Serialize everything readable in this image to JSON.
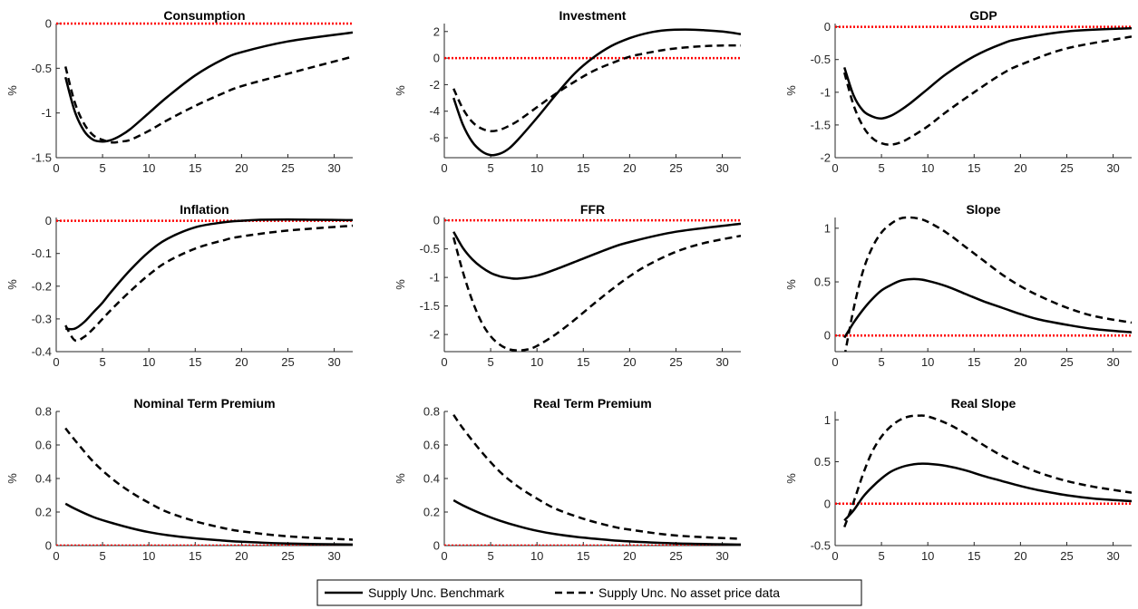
{
  "legend": {
    "entries": [
      {
        "label": "Supply Unc. Benchmark",
        "style": "solid"
      },
      {
        "label": "Supply Unc. No asset price data",
        "style": "dashed"
      }
    ]
  },
  "colors": {
    "line": "#000000",
    "zero_line": "#ff0000",
    "axis": "#262626"
  },
  "chart_data": [
    {
      "type": "line",
      "title": "Consumption",
      "xlabel": "",
      "ylabel": "%",
      "xlim": [
        0,
        32
      ],
      "ylim": [
        -1.5,
        0
      ],
      "xticks": [
        0,
        5,
        10,
        15,
        20,
        25,
        30
      ],
      "yticks": [
        -1.5,
        -1,
        -0.5,
        0
      ],
      "yticklabels": [
        "-1.5",
        "-1",
        "-0.5",
        "0"
      ],
      "series": [
        {
          "name": "Supply Unc. Benchmark",
          "style": "solid",
          "x": [
            1,
            2,
            3,
            4,
            5,
            6,
            7,
            8,
            10,
            12,
            15,
            18,
            20,
            25,
            32
          ],
          "y": [
            -0.6,
            -0.98,
            -1.2,
            -1.3,
            -1.32,
            -1.3,
            -1.25,
            -1.18,
            -1.0,
            -0.82,
            -0.58,
            -0.4,
            -0.32,
            -0.2,
            -0.1
          ]
        },
        {
          "name": "Supply Unc. No asset price data",
          "style": "dashed",
          "x": [
            1,
            2,
            3,
            4,
            5,
            6,
            7,
            8,
            10,
            12,
            15,
            18,
            20,
            25,
            32
          ],
          "y": [
            -0.48,
            -0.88,
            -1.12,
            -1.25,
            -1.3,
            -1.33,
            -1.32,
            -1.3,
            -1.2,
            -1.08,
            -0.92,
            -0.78,
            -0.7,
            -0.56,
            -0.37
          ]
        }
      ]
    },
    {
      "type": "line",
      "title": "Investment",
      "xlabel": "",
      "ylabel": "%",
      "xlim": [
        0,
        32
      ],
      "ylim": [
        -7.5,
        2.6
      ],
      "xticks": [
        0,
        5,
        10,
        15,
        20,
        25,
        30
      ],
      "yticks": [
        -6,
        -4,
        -2,
        0,
        2
      ],
      "yticklabels": [
        "-6",
        "-4",
        "-2",
        "0",
        "2"
      ],
      "series": [
        {
          "name": "Supply Unc. Benchmark",
          "style": "solid",
          "x": [
            1,
            2,
            3,
            4,
            5,
            6,
            7,
            8,
            10,
            12,
            14,
            16,
            18,
            20,
            22,
            24,
            26,
            28,
            30,
            32
          ],
          "y": [
            -3.0,
            -5.0,
            -6.3,
            -7.0,
            -7.3,
            -7.2,
            -6.8,
            -6.1,
            -4.5,
            -2.8,
            -1.2,
            0.0,
            0.9,
            1.5,
            1.9,
            2.1,
            2.15,
            2.1,
            2.0,
            1.8
          ]
        },
        {
          "name": "Supply Unc. No asset price data",
          "style": "dashed",
          "x": [
            1,
            2,
            3,
            4,
            5,
            6,
            7,
            8,
            10,
            12,
            14,
            16,
            18,
            20,
            22,
            24,
            26,
            28,
            30,
            32
          ],
          "y": [
            -2.3,
            -3.8,
            -4.8,
            -5.3,
            -5.5,
            -5.4,
            -5.1,
            -4.7,
            -3.7,
            -2.7,
            -1.8,
            -1.0,
            -0.4,
            0.1,
            0.4,
            0.65,
            0.8,
            0.9,
            0.95,
            0.95
          ]
        }
      ]
    },
    {
      "type": "line",
      "title": "GDP",
      "xlabel": "",
      "ylabel": "%",
      "xlim": [
        0,
        32
      ],
      "ylim": [
        -2,
        0.05
      ],
      "xticks": [
        0,
        5,
        10,
        15,
        20,
        25,
        30
      ],
      "yticks": [
        -2,
        -1.5,
        -1,
        -0.5,
        0
      ],
      "yticklabels": [
        "-2",
        "-1.5",
        "-1",
        "-0.5",
        "0"
      ],
      "series": [
        {
          "name": "Supply Unc. Benchmark",
          "style": "solid",
          "x": [
            1,
            2,
            3,
            4,
            5,
            6,
            7,
            8,
            10,
            12,
            15,
            18,
            20,
            25,
            32
          ],
          "y": [
            -0.62,
            -1.05,
            -1.28,
            -1.37,
            -1.4,
            -1.36,
            -1.28,
            -1.18,
            -0.95,
            -0.72,
            -0.45,
            -0.26,
            -0.18,
            -0.07,
            -0.02
          ]
        },
        {
          "name": "Supply Unc. No asset price data",
          "style": "dashed",
          "x": [
            1,
            2,
            3,
            4,
            5,
            6,
            7,
            8,
            10,
            12,
            15,
            18,
            20,
            25,
            32
          ],
          "y": [
            -0.7,
            -1.2,
            -1.52,
            -1.7,
            -1.78,
            -1.8,
            -1.77,
            -1.7,
            -1.52,
            -1.3,
            -1.0,
            -0.72,
            -0.58,
            -0.33,
            -0.15
          ]
        }
      ]
    },
    {
      "type": "line",
      "title": "Inflation",
      "xlabel": "",
      "ylabel": "%",
      "xlim": [
        0,
        32
      ],
      "ylim": [
        -0.4,
        0.01
      ],
      "xticks": [
        0,
        5,
        10,
        15,
        20,
        25,
        30
      ],
      "yticks": [
        -0.4,
        -0.3,
        -0.2,
        -0.1,
        0
      ],
      "yticklabels": [
        "-0.4",
        "-0.3",
        "-0.2",
        "-0.1",
        "0"
      ],
      "series": [
        {
          "name": "Supply Unc. Benchmark",
          "style": "solid",
          "x": [
            1,
            2,
            3,
            4,
            5,
            6,
            8,
            10,
            12,
            15,
            18,
            20,
            22,
            25,
            28,
            32
          ],
          "y": [
            -0.33,
            -0.33,
            -0.31,
            -0.28,
            -0.25,
            -0.215,
            -0.15,
            -0.095,
            -0.055,
            -0.02,
            -0.005,
            0.0,
            0.003,
            0.004,
            0.003,
            0.002
          ]
        },
        {
          "name": "Supply Unc. No asset price data",
          "style": "dashed",
          "x": [
            1,
            2,
            3,
            4,
            5,
            6,
            8,
            10,
            12,
            15,
            18,
            20,
            25,
            32
          ],
          "y": [
            -0.32,
            -0.365,
            -0.355,
            -0.33,
            -0.3,
            -0.27,
            -0.215,
            -0.165,
            -0.125,
            -0.085,
            -0.06,
            -0.048,
            -0.03,
            -0.015
          ]
        }
      ]
    },
    {
      "type": "line",
      "title": "FFR",
      "xlabel": "",
      "ylabel": "%",
      "xlim": [
        0,
        32
      ],
      "ylim": [
        -2.3,
        0.05
      ],
      "xticks": [
        0,
        5,
        10,
        15,
        20,
        25,
        30
      ],
      "yticks": [
        -2,
        -1.5,
        -1,
        -0.5,
        0
      ],
      "yticklabels": [
        "-2",
        "-1.5",
        "-1",
        "-0.5",
        "0"
      ],
      "series": [
        {
          "name": "Supply Unc. Benchmark",
          "style": "solid",
          "x": [
            1,
            2,
            3,
            4,
            5,
            6,
            7,
            8,
            10,
            12,
            15,
            18,
            20,
            25,
            32
          ],
          "y": [
            -0.2,
            -0.48,
            -0.68,
            -0.82,
            -0.92,
            -0.98,
            -1.01,
            -1.02,
            -0.97,
            -0.86,
            -0.67,
            -0.48,
            -0.38,
            -0.2,
            -0.06
          ]
        },
        {
          "name": "Supply Unc. No asset price data",
          "style": "dashed",
          "x": [
            1,
            2,
            3,
            4,
            5,
            6,
            7,
            8,
            9,
            10,
            12,
            14,
            16,
            18,
            20,
            22,
            25,
            28,
            32
          ],
          "y": [
            -0.3,
            -0.9,
            -1.4,
            -1.78,
            -2.03,
            -2.18,
            -2.26,
            -2.28,
            -2.26,
            -2.2,
            -2.0,
            -1.75,
            -1.48,
            -1.22,
            -0.98,
            -0.78,
            -0.55,
            -0.4,
            -0.27
          ]
        }
      ]
    },
    {
      "type": "line",
      "title": "Slope",
      "xlabel": "",
      "ylabel": "%",
      "xlim": [
        0,
        32
      ],
      "ylim": [
        -0.15,
        1.1
      ],
      "xticks": [
        0,
        5,
        10,
        15,
        20,
        25,
        30
      ],
      "yticks": [
        0,
        0.5,
        1
      ],
      "yticklabels": [
        "0",
        "0.5",
        "1"
      ],
      "series": [
        {
          "name": "Supply Unc. Benchmark",
          "style": "solid",
          "x": [
            1,
            2,
            3,
            4,
            5,
            6,
            7,
            8,
            9,
            10,
            12,
            14,
            16,
            18,
            20,
            22,
            25,
            28,
            32
          ],
          "y": [
            -0.02,
            0.12,
            0.24,
            0.34,
            0.42,
            0.47,
            0.51,
            0.525,
            0.525,
            0.51,
            0.46,
            0.39,
            0.32,
            0.26,
            0.2,
            0.15,
            0.1,
            0.06,
            0.03
          ]
        },
        {
          "name": "Supply Unc. No asset price data",
          "style": "dashed",
          "x": [
            1,
            2,
            3,
            4,
            5,
            6,
            7,
            8,
            9,
            10,
            12,
            14,
            16,
            18,
            20,
            22,
            25,
            28,
            32
          ],
          "y": [
            -0.2,
            0.25,
            0.6,
            0.82,
            0.96,
            1.04,
            1.09,
            1.1,
            1.09,
            1.06,
            0.96,
            0.83,
            0.7,
            0.57,
            0.46,
            0.37,
            0.26,
            0.18,
            0.12
          ]
        }
      ]
    },
    {
      "type": "line",
      "title": "Nominal Term Premium",
      "xlabel": "",
      "ylabel": "%",
      "xlim": [
        0,
        32
      ],
      "ylim": [
        0,
        0.8
      ],
      "xticks": [
        0,
        5,
        10,
        15,
        20,
        25,
        30
      ],
      "yticks": [
        0,
        0.2,
        0.4,
        0.6,
        0.8
      ],
      "yticklabels": [
        "0",
        "0.2",
        "0.4",
        "0.6",
        "0.8"
      ],
      "series": [
        {
          "name": "Supply Unc. Benchmark",
          "style": "solid",
          "x": [
            1,
            2,
            4,
            6,
            8,
            10,
            12,
            15,
            18,
            20,
            25,
            32
          ],
          "y": [
            0.25,
            0.22,
            0.17,
            0.135,
            0.105,
            0.08,
            0.062,
            0.043,
            0.03,
            0.023,
            0.012,
            0.006
          ]
        },
        {
          "name": "Supply Unc. No asset price data",
          "style": "dashed",
          "x": [
            1,
            2,
            4,
            6,
            8,
            10,
            12,
            15,
            18,
            20,
            25,
            32
          ],
          "y": [
            0.7,
            0.63,
            0.5,
            0.4,
            0.32,
            0.255,
            0.2,
            0.145,
            0.105,
            0.085,
            0.055,
            0.035
          ]
        }
      ]
    },
    {
      "type": "line",
      "title": "Real Term Premium",
      "xlabel": "",
      "ylabel": "%",
      "xlim": [
        0,
        32
      ],
      "ylim": [
        0,
        0.8
      ],
      "xticks": [
        0,
        5,
        10,
        15,
        20,
        25,
        30
      ],
      "yticks": [
        0,
        0.2,
        0.4,
        0.6,
        0.8
      ],
      "yticklabels": [
        "0",
        "0.2",
        "0.4",
        "0.6",
        "0.8"
      ],
      "series": [
        {
          "name": "Supply Unc. Benchmark",
          "style": "solid",
          "x": [
            1,
            2,
            4,
            6,
            8,
            10,
            12,
            15,
            18,
            20,
            25,
            32
          ],
          "y": [
            0.27,
            0.24,
            0.19,
            0.148,
            0.115,
            0.088,
            0.068,
            0.047,
            0.032,
            0.025,
            0.013,
            0.006
          ]
        },
        {
          "name": "Supply Unc. No asset price data",
          "style": "dashed",
          "x": [
            1,
            2,
            4,
            6,
            8,
            10,
            12,
            15,
            18,
            20,
            25,
            32
          ],
          "y": [
            0.78,
            0.7,
            0.56,
            0.44,
            0.35,
            0.28,
            0.22,
            0.16,
            0.115,
            0.095,
            0.06,
            0.04
          ]
        }
      ]
    },
    {
      "type": "line",
      "title": "Real Slope",
      "xlabel": "",
      "ylabel": "%",
      "xlim": [
        0,
        32
      ],
      "ylim": [
        -0.5,
        1.1
      ],
      "xticks": [
        0,
        5,
        10,
        15,
        20,
        25,
        30
      ],
      "yticks": [
        -0.5,
        0,
        0.5,
        1
      ],
      "yticklabels": [
        "-0.5",
        "0",
        "0.5",
        "1"
      ],
      "series": [
        {
          "name": "Supply Unc. Benchmark",
          "style": "solid",
          "x": [
            1,
            2,
            3,
            4,
            5,
            6,
            7,
            8,
            9,
            10,
            12,
            14,
            16,
            18,
            20,
            22,
            25,
            28,
            32
          ],
          "y": [
            -0.2,
            -0.08,
            0.08,
            0.2,
            0.3,
            0.38,
            0.43,
            0.46,
            0.475,
            0.475,
            0.45,
            0.4,
            0.33,
            0.27,
            0.21,
            0.16,
            0.1,
            0.06,
            0.03
          ]
        },
        {
          "name": "Supply Unc. No asset price data",
          "style": "dashed",
          "x": [
            1,
            2,
            3,
            4,
            5,
            6,
            7,
            8,
            9,
            10,
            12,
            14,
            16,
            18,
            20,
            22,
            25,
            28,
            32
          ],
          "y": [
            -0.28,
            0.02,
            0.35,
            0.62,
            0.8,
            0.92,
            1.0,
            1.04,
            1.05,
            1.04,
            0.96,
            0.84,
            0.7,
            0.57,
            0.46,
            0.37,
            0.27,
            0.2,
            0.13
          ]
        }
      ]
    }
  ]
}
